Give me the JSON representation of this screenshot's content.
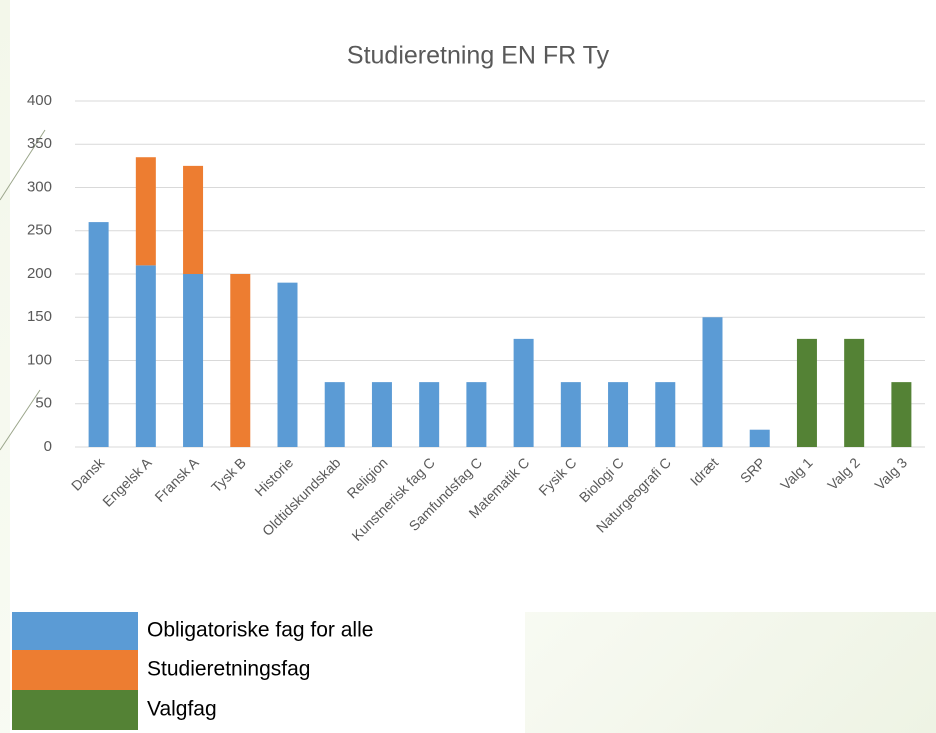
{
  "chart_data": {
    "type": "stacked_bar",
    "title": "Studieretning EN FR Ty",
    "categories": [
      "Dansk",
      "Engelsk A",
      "Fransk A",
      "Tysk B",
      "Historie",
      "Oldtidskundskab",
      "Religion",
      "Kunstnerisk fag C",
      "Samfundsfag C",
      "Matematik C",
      "Fysik C",
      "Biologi C",
      "Naturgeografi C",
      "Idræt",
      "SRP",
      "Valg 1",
      "Valg 2",
      "Valg 3"
    ],
    "series": [
      {
        "name": "Obligatoriske fag for alle",
        "color": "#5b9bd5",
        "values": [
          260,
          210,
          200,
          null,
          190,
          75,
          75,
          75,
          75,
          125,
          75,
          75,
          75,
          150,
          20,
          null,
          null,
          null
        ]
      },
      {
        "name": "Studieretningsfag",
        "color": "#ed7d31",
        "values": [
          null,
          125,
          125,
          200,
          null,
          null,
          null,
          null,
          null,
          null,
          null,
          null,
          null,
          null,
          null,
          null,
          null,
          null
        ]
      },
      {
        "name": "Valgfag",
        "color": "#548235",
        "values": [
          null,
          null,
          null,
          null,
          null,
          null,
          null,
          null,
          null,
          null,
          null,
          null,
          null,
          null,
          null,
          125,
          125,
          75
        ]
      }
    ],
    "ylim": [
      0,
      400
    ],
    "yticks": [
      0,
      50,
      100,
      150,
      200,
      250,
      300,
      350,
      400
    ],
    "grid": true
  }
}
